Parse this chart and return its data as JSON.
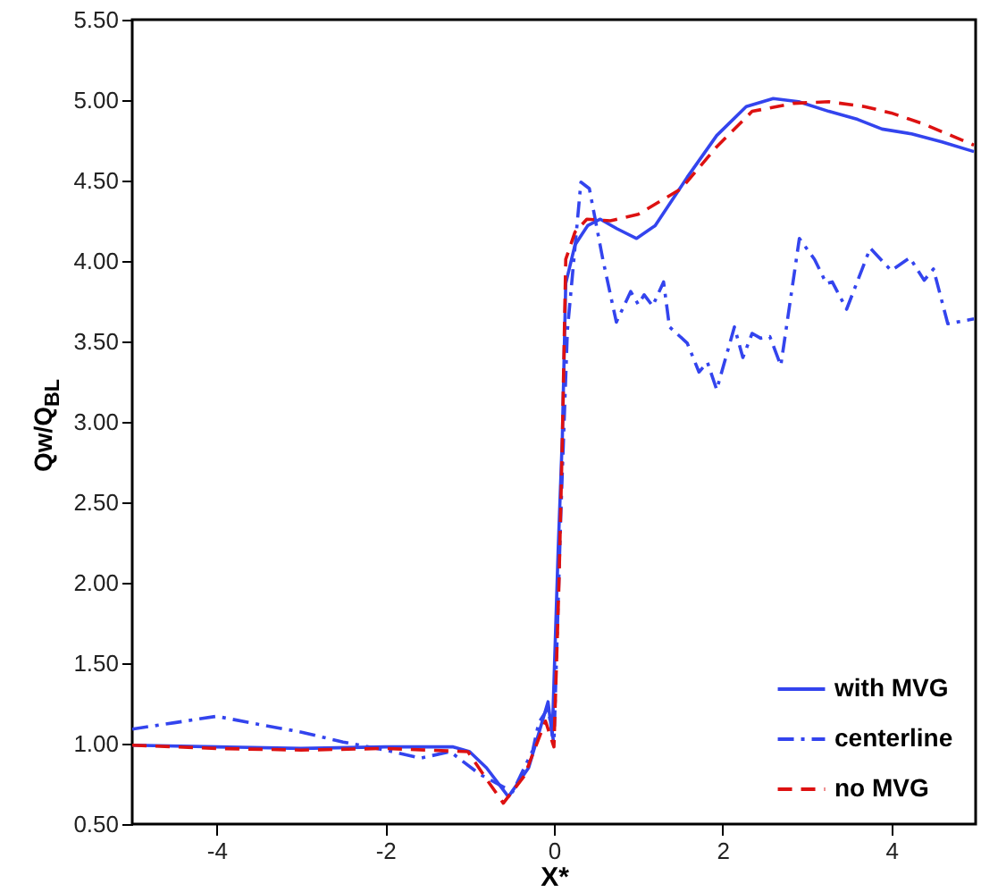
{
  "chart_data": {
    "type": "line",
    "xlabel": "X*",
    "ylabel": "Qw/Q$_{BL}$",
    "xlim": [
      -5,
      5
    ],
    "xticks": [
      -4,
      -2,
      0,
      2,
      4
    ],
    "ylim": [
      0.5,
      5.5
    ],
    "yticks": [
      {
        "value": 0.5,
        "label": "0.50"
      },
      {
        "value": 1,
        "label": "1.00"
      },
      {
        "value": 1.5,
        "label": "1.50"
      },
      {
        "value": 2,
        "label": "2.00"
      },
      {
        "value": 2.5,
        "label": "2.50"
      },
      {
        "value": 3,
        "label": "3.00"
      },
      {
        "value": 3.5,
        "label": "3.50"
      },
      {
        "value": 4,
        "label": "4.00"
      },
      {
        "value": 4.5,
        "label": "4.50"
      },
      {
        "value": 5,
        "label": "5.00"
      },
      {
        "value": 5.5,
        "label": "5.50"
      }
    ],
    "legend": "bottom right",
    "series": [
      {
        "name": "with MVG",
        "color": "#3344ee",
        "line_style": "solid",
        "x": [
          -5,
          -4,
          -3,
          -2,
          -1.6,
          -1.2,
          -1.0,
          -0.8,
          -0.54,
          -0.3,
          -0.07,
          -0.02,
          0.05,
          0.1,
          0.14,
          0.25,
          0.4,
          0.55,
          0.75,
          0.98,
          1.2,
          1.58,
          1.93,
          2.28,
          2.6,
          2.9,
          3.26,
          3.6,
          3.89,
          4.24,
          4.6,
          4.98
        ],
        "values": [
          0.99,
          0.98,
          0.97,
          0.98,
          0.98,
          0.98,
          0.95,
          0.85,
          0.67,
          0.85,
          1.26,
          1.05,
          2.2,
          2.91,
          3.86,
          4.1,
          4.22,
          4.26,
          4.2,
          4.14,
          4.22,
          4.52,
          4.78,
          4.96,
          5.01,
          4.99,
          4.93,
          4.88,
          4.82,
          4.79,
          4.74,
          4.68
        ]
      },
      {
        "name": "centerline",
        "color": "#3344ee",
        "line_style": "dashdot",
        "x": [
          -5,
          -4.5,
          -4,
          -3.5,
          -2.98,
          -2.5,
          -2.0,
          -1.58,
          -1.23,
          -0.88,
          -0.49,
          -0.25,
          -0.18,
          -0.07,
          0.0,
          0.08,
          0.16,
          0.32,
          0.42,
          0.58,
          0.74,
          0.91,
          1.0,
          1.07,
          1.17,
          1.3,
          1.37,
          1.58,
          1.72,
          1.82,
          1.93,
          2.14,
          2.24,
          2.35,
          2.45,
          2.56,
          2.69,
          2.91,
          3.09,
          3.23,
          3.3,
          3.47,
          3.75,
          4.0,
          4.22,
          4.39,
          4.5,
          4.67,
          4.98
        ],
        "values": [
          1.09,
          1.13,
          1.17,
          1.12,
          1.07,
          1.01,
          0.96,
          0.91,
          0.95,
          0.81,
          0.7,
          0.96,
          1.13,
          1.22,
          1.0,
          2.4,
          3.57,
          4.49,
          4.45,
          4.01,
          3.62,
          3.81,
          3.73,
          3.79,
          3.72,
          3.87,
          3.59,
          3.49,
          3.31,
          3.37,
          3.2,
          3.59,
          3.4,
          3.55,
          3.52,
          3.53,
          3.35,
          4.14,
          4.01,
          3.86,
          3.87,
          3.7,
          4.08,
          3.94,
          4.02,
          3.88,
          3.95,
          3.61,
          3.64
        ]
      },
      {
        "name": "no MVG",
        "color": "#dd1111",
        "line_style": "dashed",
        "x": [
          -5,
          -4,
          -3,
          -2,
          -1.5,
          -1.02,
          -0.8,
          -0.6,
          -0.35,
          -0.1,
          0.0,
          0.06,
          0.1,
          0.14,
          0.25,
          0.39,
          0.67,
          1.0,
          1.51,
          1.93,
          2.35,
          2.84,
          3.26,
          3.68,
          4.0,
          4.39,
          4.98
        ],
        "values": [
          0.99,
          0.97,
          0.96,
          0.97,
          0.96,
          0.95,
          0.78,
          0.63,
          0.8,
          1.14,
          0.98,
          2.0,
          2.9,
          4.01,
          4.18,
          4.26,
          4.25,
          4.29,
          4.45,
          4.71,
          4.93,
          4.98,
          4.99,
          4.96,
          4.92,
          4.85,
          4.72
        ]
      }
    ]
  }
}
